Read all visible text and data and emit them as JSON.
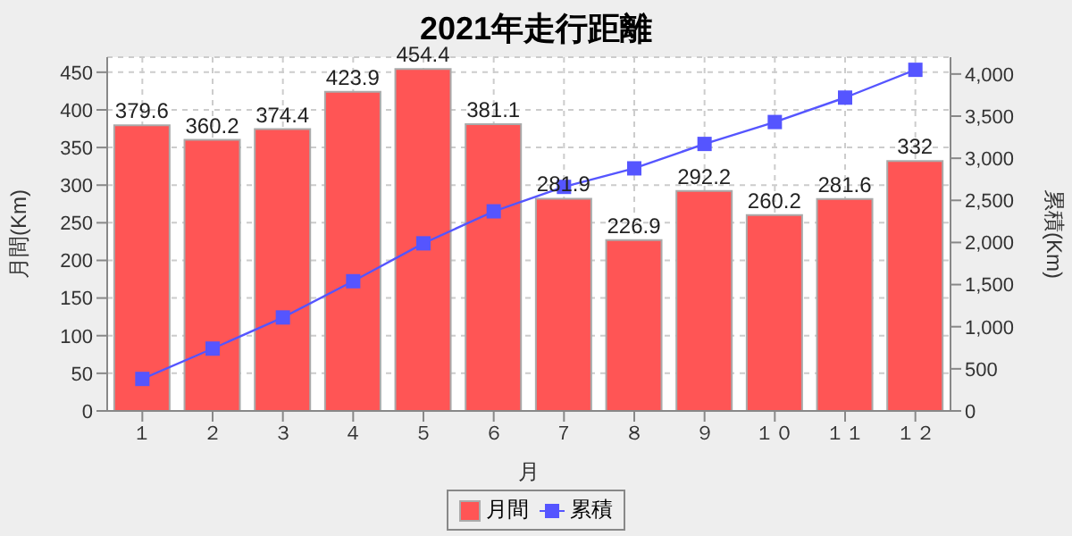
{
  "chart_data": {
    "type": "bar",
    "title": "2021年走行距離",
    "xlabel": "月",
    "ylabel": "月間(Km)",
    "y2label": "累積(Km)",
    "categories": [
      "１",
      "２",
      "３",
      "４",
      "５",
      "６",
      "７",
      "８",
      "９",
      "１０",
      "１１",
      "１２"
    ],
    "series": [
      {
        "name": "月間",
        "color": "#ff5555",
        "values": [
          379.6,
          360.2,
          374.4,
          423.9,
          454.4,
          381.1,
          281.9,
          226.9,
          292.2,
          260.2,
          281.6,
          332
        ],
        "value_labels": [
          "379.6",
          "360.2",
          "374.4",
          "423.9",
          "454.4",
          "381.1",
          "281.9",
          "226.9",
          "292.2",
          "260.2",
          "281.6",
          "332"
        ]
      },
      {
        "name": "累積",
        "type": "line",
        "axis": "y2",
        "color": "#5555ff",
        "marker": "square",
        "values": [
          380,
          740,
          1110,
          1540,
          1990,
          2370,
          2660,
          2880,
          3170,
          3430,
          3720,
          4050
        ]
      }
    ],
    "ylim": [
      0,
      470
    ],
    "yticks": [
      0,
      50,
      100,
      150,
      200,
      250,
      300,
      350,
      400,
      450
    ],
    "y2lim": [
      0,
      4200
    ],
    "y2ticks": [
      0,
      500,
      {
        "value": 1000,
        "label": "1,000"
      },
      {
        "value": 1500,
        "label": "1,500"
      },
      {
        "value": 2000,
        "label": "2,000"
      },
      {
        "value": 2500,
        "label": "2,500"
      },
      {
        "value": 3000,
        "label": "3,000"
      },
      {
        "value": 3500,
        "label": "3,500"
      },
      {
        "value": 4000,
        "label": "4,000"
      }
    ],
    "grid": true,
    "legend": "bottom"
  }
}
